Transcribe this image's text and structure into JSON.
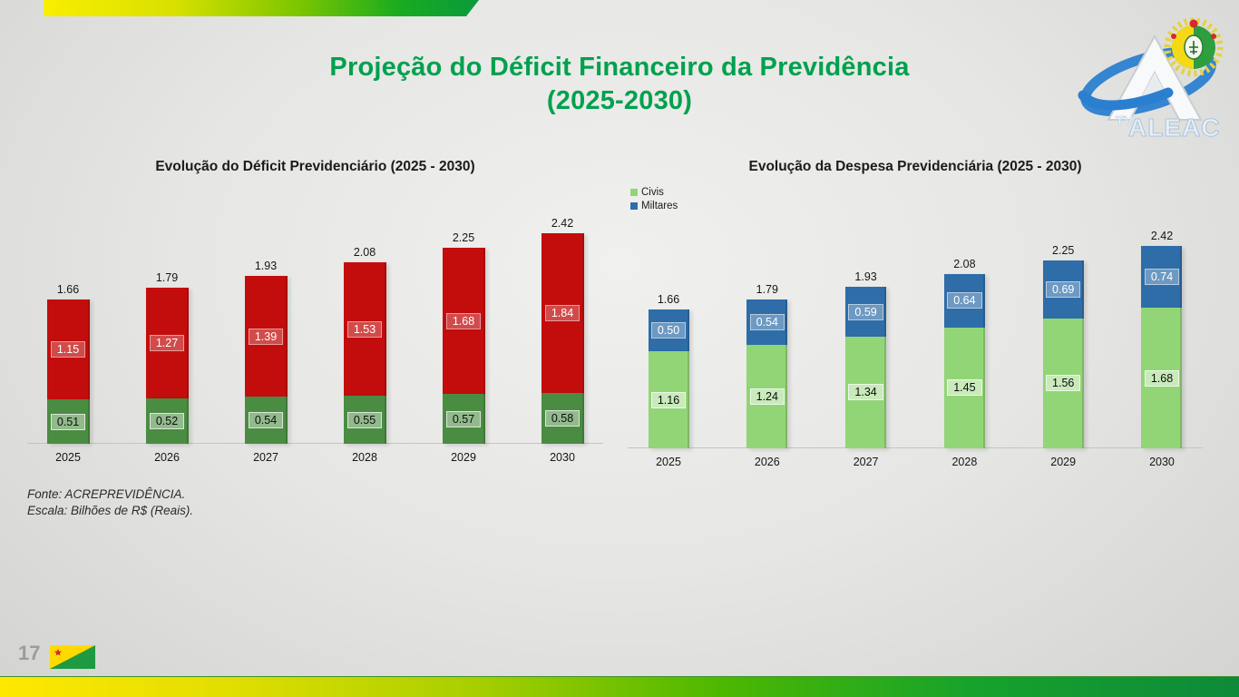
{
  "slide": {
    "title_line1": "Projeção do Déficit Financeiro da Previdência",
    "title_line2": "(2025-2030)",
    "page_number": "17",
    "footer": {
      "line1": "Fonte: ACREPREVIDÊNCIA.",
      "line2": "Escala: Bilhões de R$ (Reais)."
    },
    "logo": {
      "tv": "TV",
      "aleac": "ALEAC"
    }
  },
  "colors": {
    "title_green": "#00a14e",
    "deficit_red": "#c30d0d",
    "deficit_green": "#4a8c42",
    "civis_green": "#92d576",
    "militares_blue": "#2e6da8",
    "top_bar_gradient": [
      "#f9ee00",
      "#0a9a3c"
    ],
    "bottom_bar_gradient": [
      "#ffe800",
      "#0d8a3a"
    ]
  },
  "chart_data": [
    {
      "type": "bar",
      "stacked": true,
      "title": "Evolução do Déficit Previdenciário (2025 - 2030)",
      "categories": [
        "2025",
        "2026",
        "2027",
        "2028",
        "2029",
        "2030"
      ],
      "series": [
        {
          "name": "lower",
          "color": "#4a8c42",
          "label_bg": "rgba(255,255,255,0.40)",
          "label_color": "#0d0d0d",
          "label_border": "rgba(255,255,255,0.65)",
          "values": [
            0.51,
            0.52,
            0.54,
            0.55,
            0.57,
            0.58
          ]
        },
        {
          "name": "upper",
          "color": "#c30d0d",
          "label_bg": "rgba(255,255,255,0.26)",
          "label_color": "#ffffff",
          "label_border": "rgba(255,255,255,0.45)",
          "values": [
            1.15,
            1.27,
            1.39,
            1.53,
            1.68,
            1.84
          ]
        }
      ],
      "totals": [
        1.66,
        1.79,
        1.93,
        2.08,
        2.25,
        2.42
      ],
      "ylim": [
        0,
        2.5
      ],
      "grid": false,
      "legend": null
    },
    {
      "type": "bar",
      "stacked": true,
      "title": "Evolução da Despesa Previdenciária (2025 - 2030)",
      "categories": [
        "2025",
        "2026",
        "2027",
        "2028",
        "2029",
        "2030"
      ],
      "series": [
        {
          "name": "Civis",
          "color": "#92d576",
          "label_bg": "rgba(255,255,255,0.50)",
          "label_color": "#0d0d0d",
          "label_border": "rgba(255,255,255,0.65)",
          "values": [
            1.16,
            1.24,
            1.34,
            1.45,
            1.56,
            1.68
          ]
        },
        {
          "name": "Miltares",
          "color": "#2e6da8",
          "label_bg": "rgba(255,255,255,0.30)",
          "label_color": "#ffffff",
          "label_border": "rgba(255,255,255,0.50)",
          "values": [
            0.5,
            0.54,
            0.59,
            0.64,
            0.69,
            0.74
          ]
        }
      ],
      "totals": [
        1.66,
        1.79,
        1.93,
        2.08,
        2.25,
        2.42
      ],
      "ylim": [
        0,
        2.5
      ],
      "grid": false,
      "legend": {
        "position": "top-left",
        "entries": [
          {
            "label": "Civis",
            "color": "#92d576"
          },
          {
            "label": "Miltares",
            "color": "#2e6da8"
          }
        ]
      }
    }
  ]
}
